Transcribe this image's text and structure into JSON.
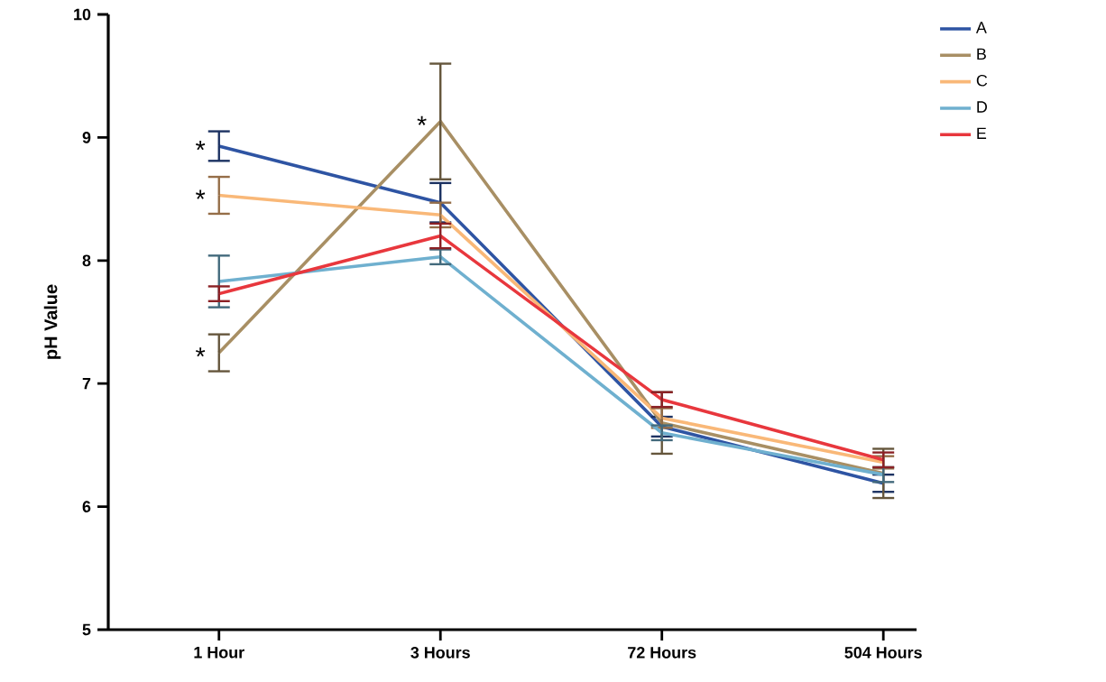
{
  "chart_data": {
    "type": "line",
    "ylabel": "pH Value",
    "categories": [
      "1 Hour",
      "3 Hours",
      "72 Hours",
      "504  Hours"
    ],
    "ylim": [
      5,
      10
    ],
    "yticks": [
      5,
      6,
      7,
      8,
      9,
      10
    ],
    "grid": false,
    "legend": "top right",
    "marker": "none",
    "line_style": "solid",
    "series": [
      {
        "name": "A",
        "color": "#2e54a3",
        "values": [
          8.93,
          8.47,
          6.65,
          6.19
        ],
        "errors": [
          0.12,
          0.16,
          0.08,
          0.07
        ]
      },
      {
        "name": "B",
        "color": "#a88f64",
        "values": [
          7.25,
          9.13,
          6.68,
          6.27
        ],
        "errors": [
          0.15,
          0.47,
          0.25,
          0.2
        ]
      },
      {
        "name": "C",
        "color": "#f9b878",
        "values": [
          8.53,
          8.37,
          6.72,
          6.36
        ],
        "errors": [
          0.15,
          0.1,
          0.08,
          0.05
        ]
      },
      {
        "name": "D",
        "color": "#6fb0cf",
        "values": [
          7.83,
          8.03,
          6.6,
          6.26
        ],
        "errors": [
          0.21,
          0.06,
          0.06,
          0.06
        ]
      },
      {
        "name": "E",
        "color": "#e8373d",
        "values": [
          7.73,
          8.2,
          6.87,
          6.38
        ],
        "errors": [
          0.06,
          0.1,
          0.06,
          0.06
        ]
      }
    ],
    "annotations": [
      {
        "text": "*",
        "x": "1 Hour",
        "y": 8.93
      },
      {
        "text": "*",
        "x": "1 Hour",
        "y": 8.53
      },
      {
        "text": "*",
        "x": "1 Hour",
        "y": 7.25
      },
      {
        "text": "*",
        "x": "3 Hours",
        "y": 9.13
      }
    ]
  }
}
